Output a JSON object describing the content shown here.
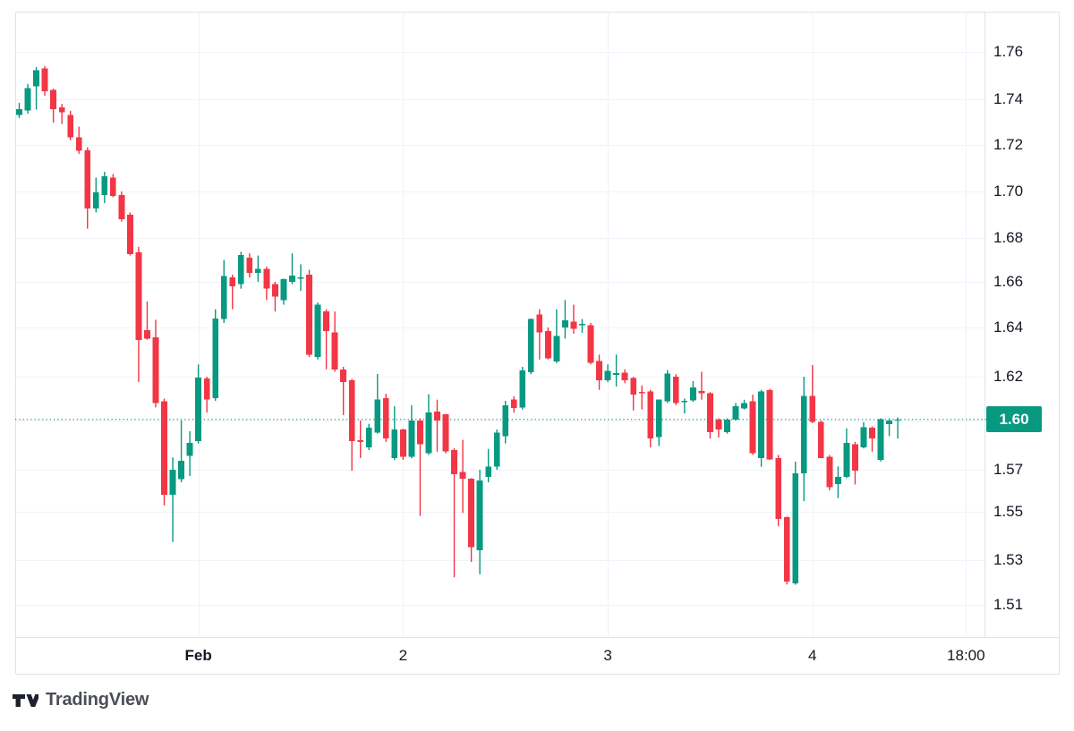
{
  "chart_data": {
    "type": "candlestick",
    "title": "",
    "timeframe": "hourly",
    "grid": true,
    "legend": "none",
    "y_axis": {
      "side": "right",
      "ticks": [
        "1.76",
        "1.74",
        "1.72",
        "1.70",
        "1.68",
        "1.66",
        "1.64",
        "1.62",
        "1.60",
        "1.57",
        "1.55",
        "1.53",
        "1.51"
      ],
      "ylim": [
        1.51,
        1.76
      ]
    },
    "x_axis": {
      "labels": [
        {
          "text": "Feb",
          "hour_index": 21,
          "emphasis": true
        },
        {
          "text": "2",
          "hour_index": 45,
          "emphasis": false
        },
        {
          "text": "3",
          "hour_index": 69,
          "emphasis": false
        },
        {
          "text": "4",
          "hour_index": 93,
          "emphasis": false
        },
        {
          "text": "18:00",
          "hour_index": 111,
          "emphasis": false
        }
      ]
    },
    "last_price": {
      "label": "1.60",
      "value": 1.6005,
      "direction": "up"
    },
    "colors": {
      "up": "#089981",
      "down": "#f23645",
      "grid": "#f0f3fa",
      "border": "#e0e3eb",
      "text": "#131722",
      "price_line": "#089981",
      "badge_bg": "#089981",
      "badge_text": "#ffffff"
    },
    "candles": [
      [
        1.7331,
        1.7384,
        1.7318,
        1.7357
      ],
      [
        1.7351,
        1.7465,
        1.7337,
        1.7448
      ],
      [
        1.7454,
        1.7536,
        1.7355,
        1.7523
      ],
      [
        1.753,
        1.754,
        1.7415,
        1.7434
      ],
      [
        1.744,
        1.7445,
        1.7298,
        1.7357
      ],
      [
        1.7364,
        1.738,
        1.7292,
        1.7344
      ],
      [
        1.7331,
        1.735,
        1.7221,
        1.7234
      ],
      [
        1.7234,
        1.728,
        1.7162,
        1.7175
      ],
      [
        1.7177,
        1.719,
        1.684,
        1.6927
      ],
      [
        1.6927,
        1.706,
        1.691,
        1.6996
      ],
      [
        1.6985,
        1.7085,
        1.695,
        1.7065
      ],
      [
        1.706,
        1.7075,
        1.6975,
        1.698
      ],
      [
        1.6985,
        1.7,
        1.687,
        1.688
      ],
      [
        1.69,
        1.691,
        1.672,
        1.6727
      ],
      [
        1.6735,
        1.676,
        1.6176,
        1.635
      ],
      [
        1.639,
        1.6514,
        1.635,
        1.6355
      ],
      [
        1.636,
        1.6434,
        1.606,
        1.608
      ],
      [
        1.6087,
        1.61,
        1.553,
        1.558
      ],
      [
        1.558,
        1.5775,
        1.5375,
        1.57
      ],
      [
        1.5655,
        1.6,
        1.564,
        1.5755
      ],
      [
        1.5785,
        1.5935,
        1.567,
        1.5865
      ],
      [
        1.5875,
        1.625,
        1.586,
        1.6196
      ],
      [
        1.6192,
        1.62,
        1.6036,
        1.6095
      ],
      [
        1.6103,
        1.648,
        1.609,
        1.644
      ],
      [
        1.6437,
        1.67,
        1.642,
        1.6627
      ],
      [
        1.662,
        1.6633,
        1.648,
        1.658
      ],
      [
        1.659,
        1.6737,
        1.657,
        1.6723
      ],
      [
        1.671,
        1.673,
        1.662,
        1.664
      ],
      [
        1.664,
        1.672,
        1.66,
        1.666
      ],
      [
        1.666,
        1.667,
        1.652,
        1.657
      ],
      [
        1.659,
        1.66,
        1.647,
        1.6535
      ],
      [
        1.652,
        1.6615,
        1.65,
        1.6613
      ],
      [
        1.66,
        1.673,
        1.659,
        1.6628
      ],
      [
        1.6615,
        1.668,
        1.656,
        1.662
      ],
      [
        1.6633,
        1.6655,
        1.628,
        1.629
      ],
      [
        1.628,
        1.651,
        1.627,
        1.65
      ],
      [
        1.647,
        1.648,
        1.623,
        1.6385
      ],
      [
        1.638,
        1.647,
        1.622,
        1.623
      ],
      [
        1.623,
        1.624,
        1.6025,
        1.6176
      ],
      [
        1.6184,
        1.619,
        1.5695,
        1.5875
      ],
      [
        1.588,
        1.6,
        1.5772,
        1.587
      ],
      [
        1.5836,
        1.598,
        1.582,
        1.5956
      ],
      [
        1.5927,
        1.6211,
        1.592,
        1.6095
      ],
      [
        1.6103,
        1.6122,
        1.587,
        1.589
      ],
      [
        1.5772,
        1.6065,
        1.576,
        1.5945
      ],
      [
        1.5945,
        1.595,
        1.576,
        1.578
      ],
      [
        1.578,
        1.607,
        1.577,
        1.6
      ],
      [
        1.6,
        1.601,
        1.5483,
        1.5855
      ],
      [
        1.58,
        1.612,
        1.579,
        1.6037
      ],
      [
        1.604,
        1.6095,
        1.581,
        1.6
      ],
      [
        1.6028,
        1.603,
        1.58,
        1.5812
      ],
      [
        1.582,
        1.583,
        1.5223,
        1.5679
      ],
      [
        1.569,
        1.5882,
        1.5495,
        1.5657
      ],
      [
        1.5657,
        1.566,
        1.5292,
        1.5353
      ],
      [
        1.534,
        1.57,
        1.5237,
        1.565
      ],
      [
        1.5667,
        1.5827,
        1.564,
        1.5718
      ],
      [
        1.5718,
        1.5945,
        1.57,
        1.5927
      ],
      [
        1.5905,
        1.609,
        1.586,
        1.607
      ],
      [
        1.6095,
        1.611,
        1.6036,
        1.6058
      ],
      [
        1.606,
        1.624,
        1.605,
        1.6226
      ],
      [
        1.6219,
        1.644,
        1.621,
        1.6437
      ],
      [
        1.6456,
        1.648,
        1.627,
        1.638
      ],
      [
        1.6385,
        1.64,
        1.627,
        1.6275
      ],
      [
        1.6262,
        1.648,
        1.6255,
        1.6365
      ],
      [
        1.64,
        1.652,
        1.6355,
        1.6431
      ],
      [
        1.6425,
        1.65,
        1.6375,
        1.6394
      ],
      [
        1.641,
        1.6437,
        1.6378,
        1.6415
      ],
      [
        1.641,
        1.642,
        1.625,
        1.6257
      ],
      [
        1.6263,
        1.629,
        1.614,
        1.6183
      ],
      [
        1.6183,
        1.625,
        1.6175,
        1.6223
      ],
      [
        1.6208,
        1.629,
        1.6155,
        1.6215
      ],
      [
        1.6216,
        1.623,
        1.617,
        1.6183
      ],
      [
        1.6193,
        1.62,
        1.6046,
        1.6118
      ],
      [
        1.613,
        1.616,
        1.605,
        1.6125
      ],
      [
        1.6132,
        1.614,
        1.5836,
        1.5891
      ],
      [
        1.59,
        1.6095,
        1.5845,
        1.6095
      ],
      [
        1.6088,
        1.6227,
        1.608,
        1.6213
      ],
      [
        1.62,
        1.621,
        1.607,
        1.608
      ],
      [
        1.6085,
        1.61,
        1.6032,
        1.609
      ],
      [
        1.6092,
        1.618,
        1.6085,
        1.6152
      ],
      [
        1.6135,
        1.622,
        1.6095,
        1.6125
      ],
      [
        1.6125,
        1.613,
        1.589,
        1.5929
      ],
      [
        1.6005,
        1.601,
        1.5897,
        1.5945
      ],
      [
        1.5929,
        1.601,
        1.592,
        1.6005
      ],
      [
        1.6005,
        1.608,
        1.6,
        1.6065
      ],
      [
        1.6055,
        1.6095,
        1.605,
        1.608
      ],
      [
        1.6088,
        1.6118,
        1.579,
        1.58
      ],
      [
        1.5772,
        1.614,
        1.5718,
        1.6132
      ],
      [
        1.6139,
        1.6145,
        1.576,
        1.5763
      ],
      [
        1.5772,
        1.579,
        1.544,
        1.547
      ],
      [
        1.5477,
        1.548,
        1.5191,
        1.5204
      ],
      [
        1.5197,
        1.575,
        1.519,
        1.5683
      ],
      [
        1.5683,
        1.62,
        1.5551,
        1.6112
      ],
      [
        1.6112,
        1.6247,
        1.5985,
        1.5991
      ],
      [
        1.5991,
        1.6,
        1.577,
        1.5772
      ],
      [
        1.578,
        1.579,
        1.5602,
        1.5617
      ],
      [
        1.5632,
        1.572,
        1.5565,
        1.5667
      ],
      [
        1.5667,
        1.5953,
        1.566,
        1.5864
      ],
      [
        1.5855,
        1.587,
        1.563,
        1.5695
      ],
      [
        1.5836,
        1.599,
        1.583,
        1.596
      ],
      [
        1.5956,
        1.5965,
        1.581,
        1.589
      ],
      [
        1.576,
        1.601,
        1.575,
        1.6007
      ],
      [
        1.5978,
        1.601,
        1.5905,
        1.6
      ],
      [
        1.6,
        1.6014,
        1.589,
        1.6005
      ]
    ]
  },
  "price_scale": {
    "last_price_label": "1.60"
  },
  "attribution": {
    "logo_text": "TradingView"
  }
}
